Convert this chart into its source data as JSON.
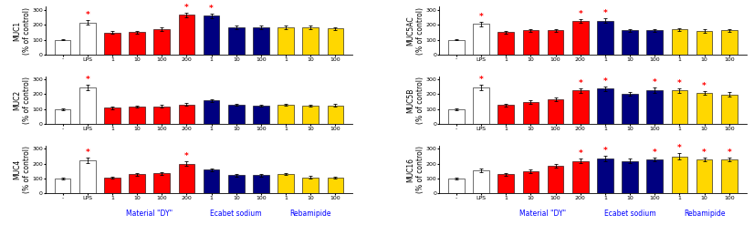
{
  "x_labels": [
    "-",
    "LPS",
    "1",
    "10",
    "100",
    "200",
    "1",
    "10",
    "100",
    "1",
    "10",
    "100"
  ],
  "bar_colors": [
    "white",
    "white",
    "red",
    "red",
    "red",
    "red",
    "navy",
    "navy",
    "navy",
    "gold",
    "gold",
    "gold"
  ],
  "bar_edgecolor": "black",
  "error_color": "black",
  "star_color": "red",
  "ylim": [
    0,
    320
  ],
  "yticks": [
    0,
    100,
    200,
    300
  ],
  "ylabel_fontsize": 5.5,
  "tick_fontsize": 4.5,
  "group_label_fontsize": 5.5,
  "star_fontsize": 6.5,
  "MUC1": {
    "ylabel": "MUC1\n(% of control)",
    "values": [
      100,
      215,
      148,
      150,
      170,
      265,
      260,
      185,
      183,
      182,
      182,
      175
    ],
    "errors": [
      5,
      15,
      10,
      10,
      12,
      15,
      15,
      12,
      12,
      12,
      12,
      10
    ],
    "stars": [
      false,
      true,
      false,
      false,
      false,
      true,
      true,
      false,
      false,
      false,
      false,
      false
    ]
  },
  "MUC2": {
    "ylabel": "MUC2\n(% of control)",
    "values": [
      100,
      245,
      108,
      118,
      118,
      132,
      158,
      130,
      122,
      130,
      122,
      125
    ],
    "errors": [
      5,
      18,
      8,
      8,
      10,
      10,
      8,
      8,
      8,
      8,
      8,
      8
    ],
    "stars": [
      false,
      true,
      false,
      false,
      false,
      false,
      false,
      false,
      false,
      false,
      false,
      false
    ]
  },
  "MUC4": {
    "ylabel": "MUC4\n(% of control)",
    "values": [
      100,
      220,
      107,
      128,
      135,
      200,
      158,
      122,
      122,
      130,
      108,
      105
    ],
    "errors": [
      5,
      18,
      8,
      10,
      10,
      15,
      10,
      10,
      8,
      8,
      8,
      8
    ],
    "stars": [
      false,
      true,
      false,
      false,
      false,
      true,
      false,
      false,
      false,
      false,
      false,
      false
    ]
  },
  "MUC5AC": {
    "ylabel": "MUC5AC\n(% of control)",
    "values": [
      100,
      205,
      150,
      162,
      162,
      225,
      228,
      162,
      162,
      168,
      158,
      162
    ],
    "errors": [
      5,
      15,
      10,
      10,
      10,
      15,
      15,
      10,
      10,
      10,
      10,
      10
    ],
    "stars": [
      false,
      true,
      false,
      false,
      false,
      true,
      true,
      false,
      false,
      false,
      false,
      false
    ]
  },
  "MUC5B": {
    "ylabel": "MUC5B\n(% of control)",
    "values": [
      100,
      245,
      128,
      148,
      168,
      225,
      238,
      200,
      228,
      225,
      208,
      198
    ],
    "errors": [
      5,
      18,
      10,
      12,
      12,
      15,
      15,
      12,
      18,
      15,
      15,
      15
    ],
    "stars": [
      false,
      true,
      false,
      false,
      false,
      true,
      true,
      false,
      true,
      true,
      true,
      false
    ]
  },
  "MUC16": {
    "ylabel": "MUC16\n(% of control)",
    "values": [
      100,
      155,
      128,
      148,
      185,
      218,
      235,
      218,
      228,
      248,
      228,
      228
    ],
    "errors": [
      5,
      10,
      10,
      10,
      12,
      15,
      18,
      15,
      15,
      20,
      15,
      15
    ],
    "stars": [
      false,
      false,
      false,
      false,
      false,
      true,
      true,
      false,
      true,
      true,
      true,
      true
    ]
  }
}
